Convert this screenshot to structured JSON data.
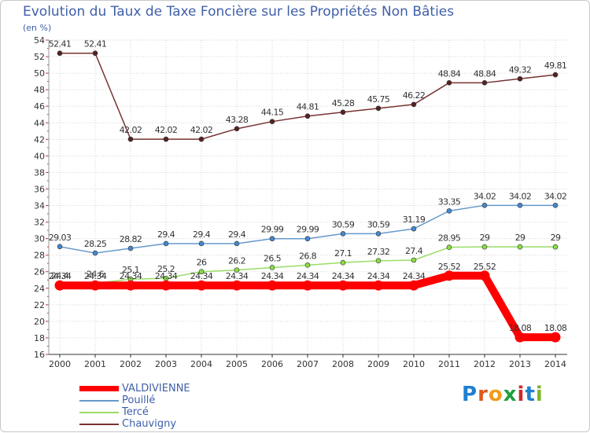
{
  "chart_data": {
    "type": "line",
    "title": "Evolution du Taux de Taxe Foncière sur les Propriétés Non Bâties",
    "subtitle": "(en %)",
    "xlabel": "",
    "ylabel": "",
    "x": [
      "2000",
      "2001",
      "2002",
      "2003",
      "2004",
      "2005",
      "2006",
      "2007",
      "2008",
      "2009",
      "2010",
      "2011",
      "2012",
      "2013",
      "2014"
    ],
    "ylim": [
      16,
      54
    ],
    "yticks": [
      16,
      18,
      20,
      22,
      24,
      26,
      28,
      30,
      32,
      34,
      36,
      38,
      40,
      42,
      44,
      46,
      48,
      50,
      52,
      54
    ],
    "grid": true,
    "legend": "bottom-left",
    "series": [
      {
        "name": "VALDIVIENNE",
        "color": "#ff0000",
        "values": [
          24.34,
          24.34,
          24.34,
          24.34,
          24.34,
          24.34,
          24.34,
          24.34,
          24.34,
          24.34,
          24.34,
          25.52,
          25.52,
          18.08,
          18.08
        ],
        "labels": [
          "24.34",
          "24.34",
          "24.34",
          "24.34",
          "24.34",
          "24.34",
          "24.34",
          "24.34",
          "24.34",
          "24.34",
          "24.34",
          "25.52",
          "25.52",
          "18.08",
          "18.08"
        ]
      },
      {
        "name": "Pouillé",
        "color": "#6699cc",
        "values": [
          29.03,
          28.25,
          28.82,
          29.4,
          29.4,
          29.4,
          29.99,
          29.99,
          30.59,
          30.59,
          31.19,
          33.35,
          34.02,
          34.02,
          34.02
        ],
        "labels": [
          "29.03",
          "28.25",
          "28.82",
          "29.4",
          "29.4",
          "29.4",
          "29.99",
          "29.99",
          "30.59",
          "30.59",
          "31.19",
          "33.35",
          "34.02",
          "34.02",
          "34.02"
        ]
      },
      {
        "name": "Tercé",
        "color": "#99dd66",
        "values": [
          24.4,
          24.6,
          25.1,
          25.2,
          26,
          26.2,
          26.5,
          26.8,
          27.1,
          27.32,
          27.4,
          28.95,
          29,
          29,
          29
        ],
        "labels": [
          "24.4",
          "24.6",
          "25.1",
          "25.2",
          "26",
          "26.2",
          "26.5",
          "26.8",
          "27.1",
          "27.32",
          "27.4",
          "28.95",
          "29",
          "29",
          "29"
        ]
      },
      {
        "name": "Chauvigny",
        "color": "#773333",
        "values": [
          52.41,
          52.41,
          42.02,
          42.02,
          42.02,
          43.28,
          44.15,
          44.81,
          45.28,
          45.75,
          46.22,
          48.84,
          48.84,
          49.32,
          49.81
        ],
        "labels": [
          "52.41",
          "52.41",
          "42.02",
          "42.02",
          "42.02",
          "43.28",
          "44.15",
          "44.81",
          "45.28",
          "45.75",
          "46.22",
          "48.84",
          "48.84",
          "49.32",
          "49.81"
        ]
      }
    ]
  },
  "logo": {
    "text": "Proxiti"
  }
}
